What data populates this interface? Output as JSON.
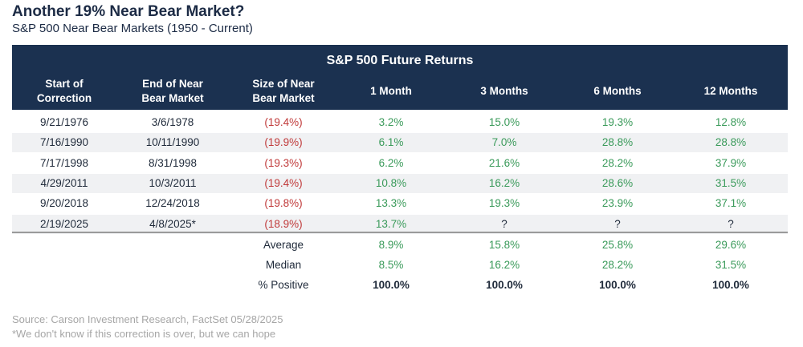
{
  "title": "Another 19% Near Bear Market?",
  "subtitle": "S&P 500 Near Bear Markets (1950 - Current)",
  "header_title": "S&P 500 Future Returns",
  "chart_data": {
    "type": "table",
    "columns": [
      {
        "line1": "Start of",
        "line2": "Correction"
      },
      {
        "line1": "End of Near",
        "line2": "Bear Market"
      },
      {
        "line1": "Size of Near",
        "line2": "Bear Market"
      },
      {
        "line1": "1 Month",
        "line2": ""
      },
      {
        "line1": "3 Months",
        "line2": ""
      },
      {
        "line1": "6 Months",
        "line2": ""
      },
      {
        "line1": "12 Months",
        "line2": ""
      }
    ],
    "rows": [
      [
        "9/21/1976",
        "3/6/1978",
        "(19.4%)",
        "3.2%",
        "15.0%",
        "19.3%",
        "12.8%"
      ],
      [
        "7/16/1990",
        "10/11/1990",
        "(19.9%)",
        "6.1%",
        "7.0%",
        "28.8%",
        "28.8%"
      ],
      [
        "7/17/1998",
        "8/31/1998",
        "(19.3%)",
        "6.2%",
        "21.6%",
        "28.2%",
        "37.9%"
      ],
      [
        "4/29/2011",
        "10/3/2011",
        "(19.4%)",
        "10.8%",
        "16.2%",
        "28.6%",
        "31.5%"
      ],
      [
        "9/20/2018",
        "12/24/2018",
        "(19.8%)",
        "13.3%",
        "19.3%",
        "23.9%",
        "37.1%"
      ],
      [
        "2/19/2025",
        "4/8/2025*",
        "(18.9%)",
        "13.7%",
        "?",
        "?",
        "?"
      ]
    ],
    "summary": [
      {
        "label": "Average",
        "values": [
          "8.9%",
          "15.8%",
          "25.8%",
          "29.6%"
        ]
      },
      {
        "label": "Median",
        "values": [
          "8.5%",
          "16.2%",
          "28.2%",
          "31.5%"
        ]
      },
      {
        "label": "% Positive",
        "values": [
          "100.0%",
          "100.0%",
          "100.0%",
          "100.0%"
        ]
      }
    ]
  },
  "colors": {
    "header_bg": "#1b3150",
    "negative": "#c03a3a",
    "positive": "#3a9a5a",
    "band": "#f0f1f3"
  },
  "source": "Source: Carson Investment Research, FactSet 05/28/2025",
  "note": "*We don't know if this correction is over, but we can hope"
}
